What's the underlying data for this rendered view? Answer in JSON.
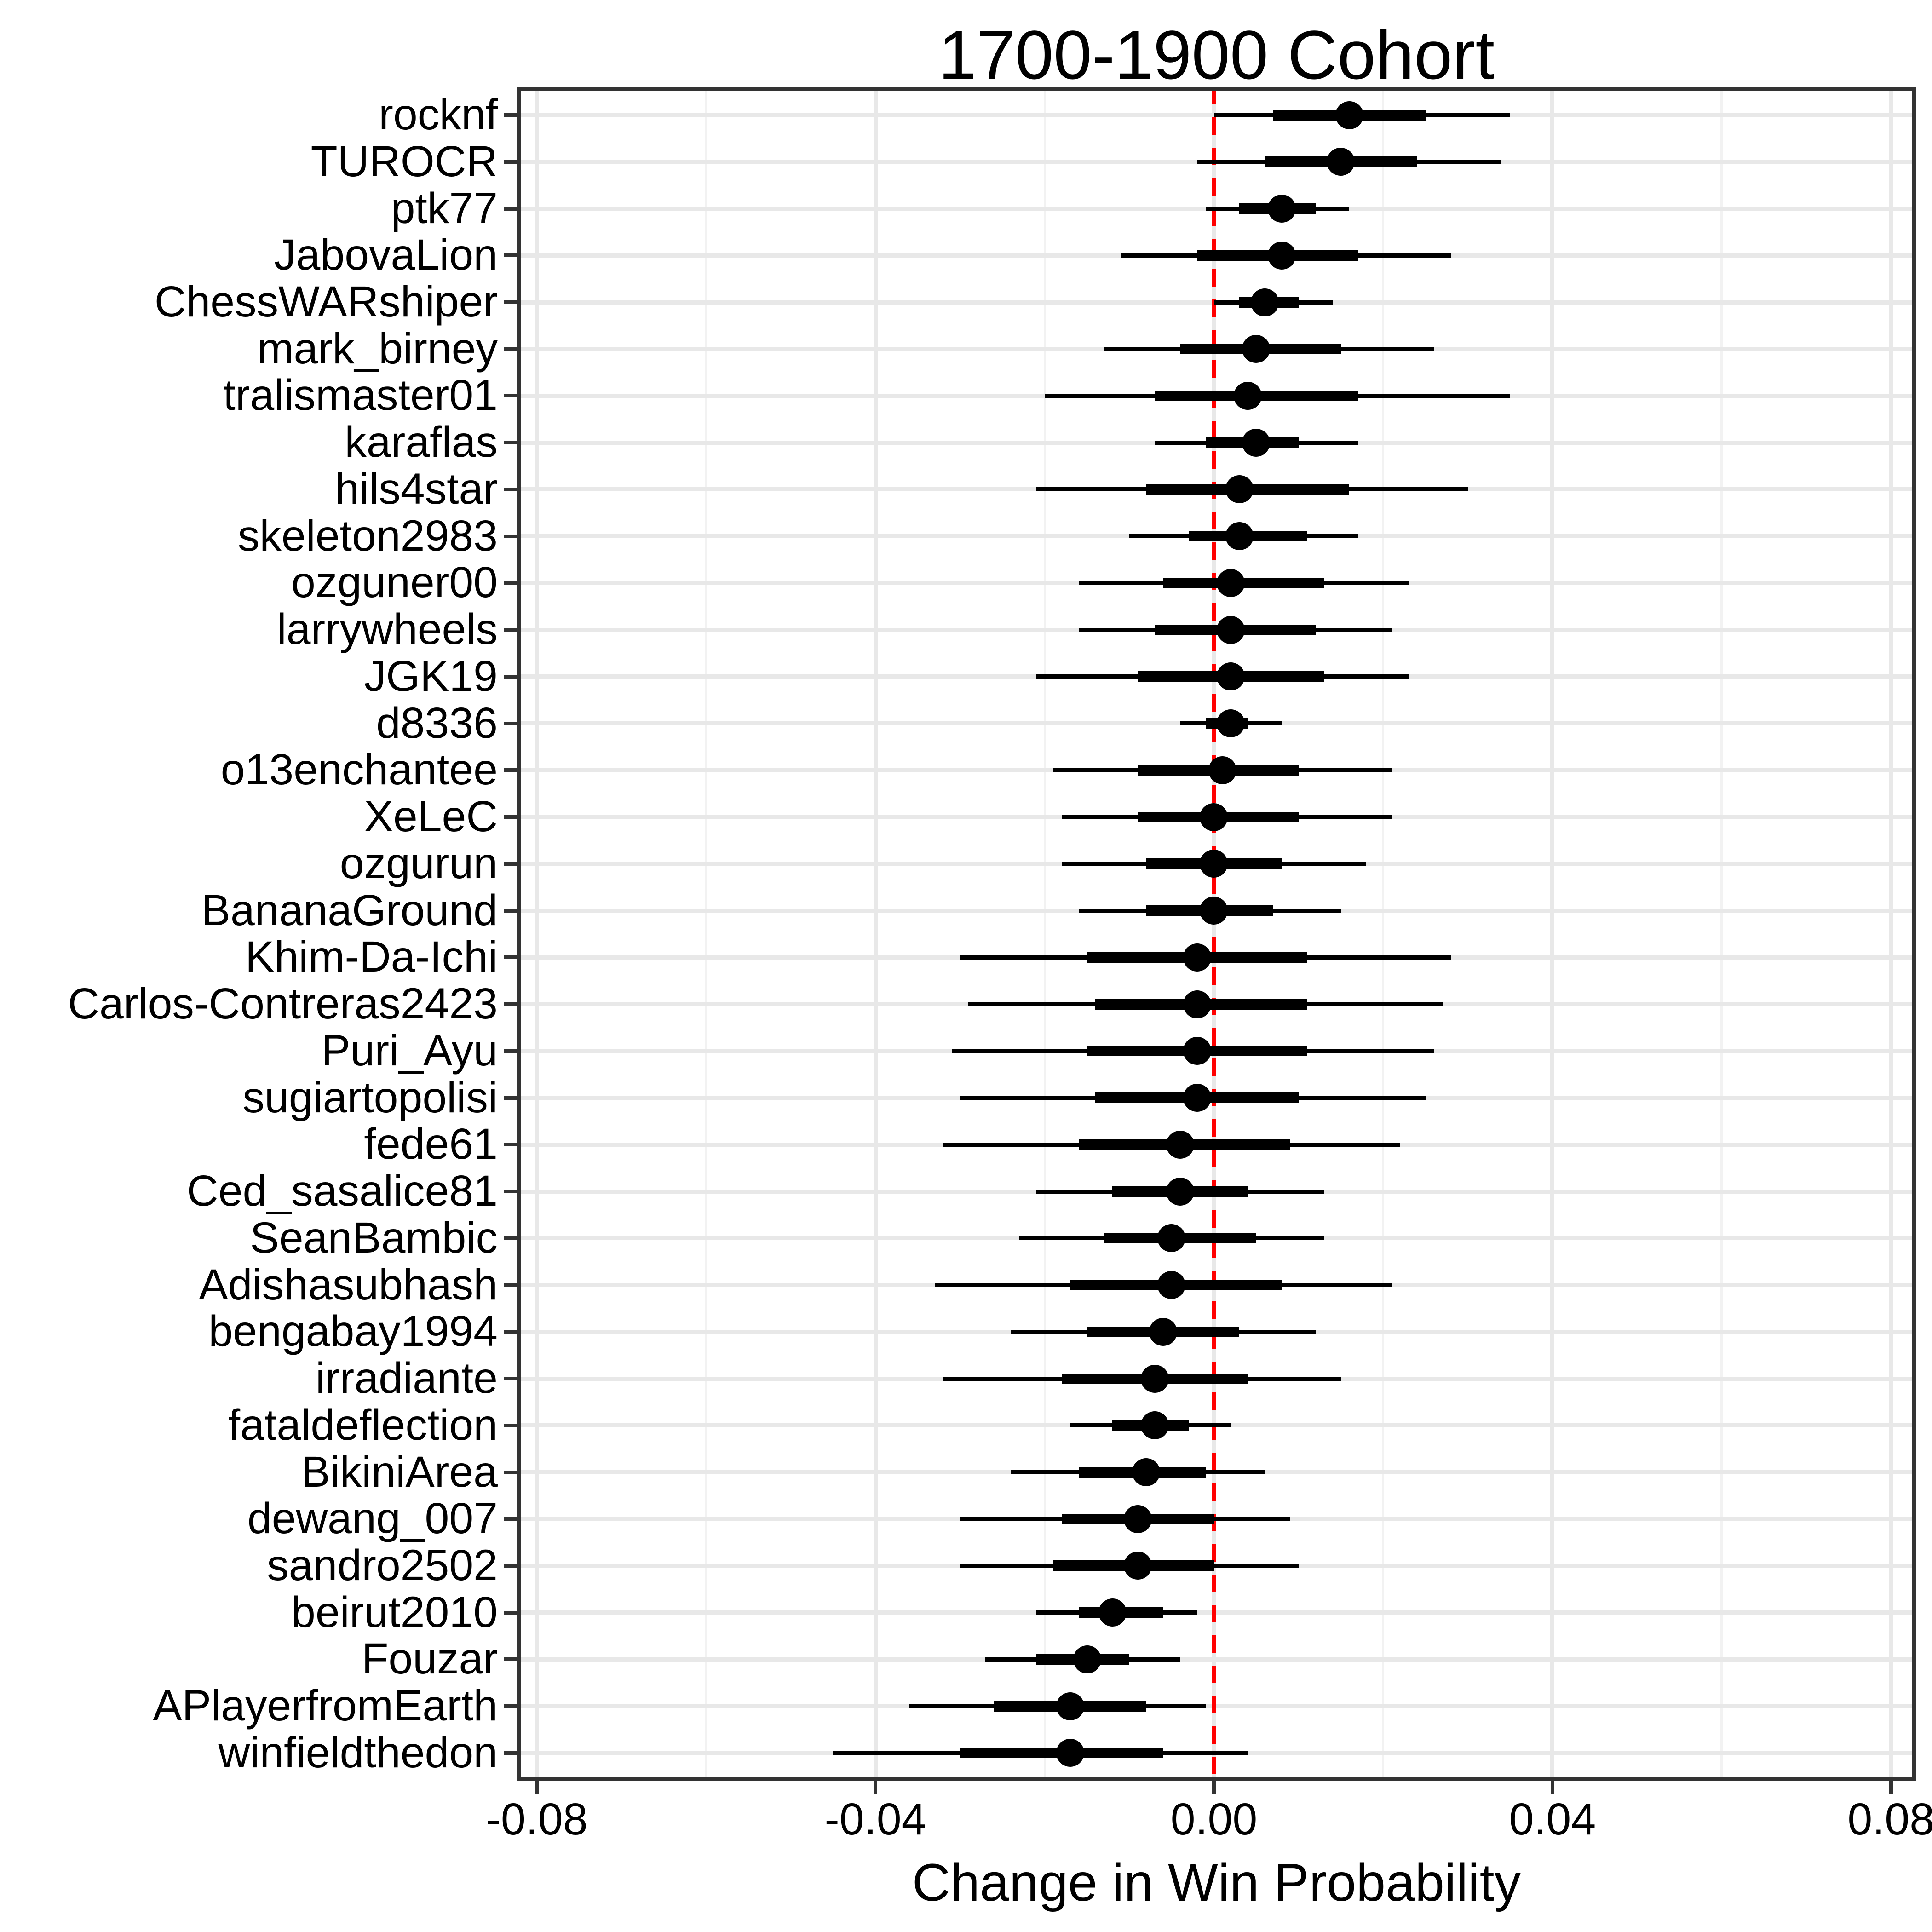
{
  "figure": {
    "title": "1700-1900 Cohort"
  },
  "x_axis": {
    "title": "Change in Win Probability",
    "tick_labels": [
      "-0.08",
      "-0.04",
      "0.00",
      "0.04",
      "0.08"
    ],
    "tick_values": [
      -0.08,
      -0.04,
      0.0,
      0.04,
      0.08
    ],
    "minor_tick_values": [
      -0.06,
      -0.02,
      0.02,
      0.06
    ]
  },
  "reference_line": {
    "x": 0.0,
    "color": "#ff0000",
    "style": "dashed"
  },
  "style": {
    "point_color": "#000000",
    "grid_major_color": "#e8e8e8",
    "grid_minor_color": "#f2f2f2",
    "axis_color": "#333333",
    "background": "#ffffff"
  },
  "chart_data": {
    "type": "scatter",
    "subtype": "forest_pointrange",
    "title": "1700-1900 Cohort",
    "xlabel": "Change in Win Probability",
    "ylabel": "",
    "xlim": [
      -0.0824,
      0.083
    ],
    "grid": true,
    "legend": false,
    "reference_x": 0.0,
    "points": [
      {
        "label": "rocknf",
        "estimate": 0.016,
        "inner": [
          0.007,
          0.025
        ],
        "outer": [
          0.0,
          0.035
        ]
      },
      {
        "label": "TUROCR",
        "estimate": 0.015,
        "inner": [
          0.006,
          0.024
        ],
        "outer": [
          -0.002,
          0.034
        ]
      },
      {
        "label": "ptk77",
        "estimate": 0.008,
        "inner": [
          0.003,
          0.012
        ],
        "outer": [
          -0.001,
          0.016
        ]
      },
      {
        "label": "JabovaLion",
        "estimate": 0.008,
        "inner": [
          -0.002,
          0.017
        ],
        "outer": [
          -0.011,
          0.028
        ]
      },
      {
        "label": "ChessWARshiper",
        "estimate": 0.006,
        "inner": [
          0.003,
          0.01
        ],
        "outer": [
          0.0,
          0.014
        ]
      },
      {
        "label": "mark_birney",
        "estimate": 0.005,
        "inner": [
          -0.004,
          0.015
        ],
        "outer": [
          -0.013,
          0.026
        ]
      },
      {
        "label": "tralismaster01",
        "estimate": 0.004,
        "inner": [
          -0.007,
          0.017
        ],
        "outer": [
          -0.02,
          0.035
        ]
      },
      {
        "label": "karaflas",
        "estimate": 0.005,
        "inner": [
          -0.001,
          0.01
        ],
        "outer": [
          -0.007,
          0.017
        ]
      },
      {
        "label": "hils4star",
        "estimate": 0.003,
        "inner": [
          -0.008,
          0.016
        ],
        "outer": [
          -0.021,
          0.03
        ]
      },
      {
        "label": "skeleton2983",
        "estimate": 0.003,
        "inner": [
          -0.003,
          0.011
        ],
        "outer": [
          -0.01,
          0.017
        ]
      },
      {
        "label": "ozguner00",
        "estimate": 0.002,
        "inner": [
          -0.006,
          0.013
        ],
        "outer": [
          -0.016,
          0.023
        ]
      },
      {
        "label": "larrywheels",
        "estimate": 0.002,
        "inner": [
          -0.007,
          0.012
        ],
        "outer": [
          -0.016,
          0.021
        ]
      },
      {
        "label": "JGK19",
        "estimate": 0.002,
        "inner": [
          -0.009,
          0.013
        ],
        "outer": [
          -0.021,
          0.023
        ]
      },
      {
        "label": "d8336",
        "estimate": 0.002,
        "inner": [
          -0.001,
          0.004
        ],
        "outer": [
          -0.004,
          0.008
        ]
      },
      {
        "label": "o13enchantee",
        "estimate": 0.001,
        "inner": [
          -0.009,
          0.01
        ],
        "outer": [
          -0.019,
          0.021
        ]
      },
      {
        "label": "XeLeC",
        "estimate": 0.0,
        "inner": [
          -0.009,
          0.01
        ],
        "outer": [
          -0.018,
          0.021
        ]
      },
      {
        "label": "ozgurun",
        "estimate": 0.0,
        "inner": [
          -0.008,
          0.008
        ],
        "outer": [
          -0.018,
          0.018
        ]
      },
      {
        "label": "BananaGround",
        "estimate": 0.0,
        "inner": [
          -0.008,
          0.007
        ],
        "outer": [
          -0.016,
          0.015
        ]
      },
      {
        "label": "Khim-Da-Ichi",
        "estimate": -0.002,
        "inner": [
          -0.015,
          0.011
        ],
        "outer": [
          -0.03,
          0.028
        ]
      },
      {
        "label": "Carlos-Contreras2423",
        "estimate": -0.002,
        "inner": [
          -0.014,
          0.011
        ],
        "outer": [
          -0.029,
          0.027
        ]
      },
      {
        "label": "Puri_Ayu",
        "estimate": -0.002,
        "inner": [
          -0.015,
          0.011
        ],
        "outer": [
          -0.031,
          0.026
        ]
      },
      {
        "label": "sugiartopolisi",
        "estimate": -0.002,
        "inner": [
          -0.014,
          0.01
        ],
        "outer": [
          -0.03,
          0.025
        ]
      },
      {
        "label": "fede61",
        "estimate": -0.004,
        "inner": [
          -0.016,
          0.009
        ],
        "outer": [
          -0.032,
          0.022
        ]
      },
      {
        "label": "Ced_sasalice81",
        "estimate": -0.004,
        "inner": [
          -0.012,
          0.004
        ],
        "outer": [
          -0.021,
          0.013
        ]
      },
      {
        "label": "SeanBambic",
        "estimate": -0.005,
        "inner": [
          -0.013,
          0.005
        ],
        "outer": [
          -0.023,
          0.013
        ]
      },
      {
        "label": "Adishasubhash",
        "estimate": -0.005,
        "inner": [
          -0.017,
          0.008
        ],
        "outer": [
          -0.033,
          0.021
        ]
      },
      {
        "label": "bengabay1994",
        "estimate": -0.006,
        "inner": [
          -0.015,
          0.003
        ],
        "outer": [
          -0.024,
          0.012
        ]
      },
      {
        "label": "irradiante",
        "estimate": -0.007,
        "inner": [
          -0.018,
          0.004
        ],
        "outer": [
          -0.032,
          0.015
        ]
      },
      {
        "label": "fataldeflection",
        "estimate": -0.007,
        "inner": [
          -0.012,
          -0.003
        ],
        "outer": [
          -0.017,
          0.002
        ]
      },
      {
        "label": "BikiniArea",
        "estimate": -0.008,
        "inner": [
          -0.016,
          -0.001
        ],
        "outer": [
          -0.024,
          0.006
        ]
      },
      {
        "label": "dewang_007",
        "estimate": -0.009,
        "inner": [
          -0.018,
          0.0
        ],
        "outer": [
          -0.03,
          0.009
        ]
      },
      {
        "label": "sandro2502",
        "estimate": -0.009,
        "inner": [
          -0.019,
          0.0
        ],
        "outer": [
          -0.03,
          0.01
        ]
      },
      {
        "label": "beirut2010",
        "estimate": -0.012,
        "inner": [
          -0.016,
          -0.006
        ],
        "outer": [
          -0.021,
          -0.002
        ]
      },
      {
        "label": "Fouzar",
        "estimate": -0.015,
        "inner": [
          -0.021,
          -0.01
        ],
        "outer": [
          -0.027,
          -0.004
        ]
      },
      {
        "label": "APlayerfromEarth",
        "estimate": -0.017,
        "inner": [
          -0.026,
          -0.008
        ],
        "outer": [
          -0.036,
          -0.001
        ]
      },
      {
        "label": "winfieldthedon",
        "estimate": -0.017,
        "inner": [
          -0.03,
          -0.006
        ],
        "outer": [
          -0.045,
          0.004
        ]
      }
    ]
  }
}
